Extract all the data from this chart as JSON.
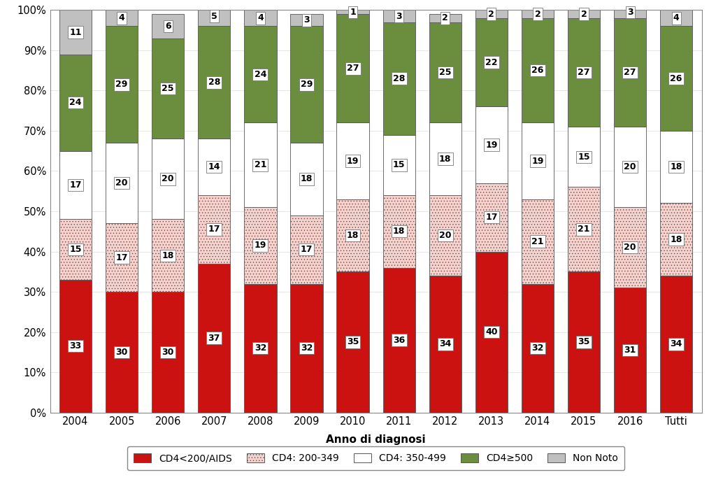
{
  "categories": [
    "2004",
    "2005",
    "2006",
    "2007",
    "2008",
    "2009",
    "2010",
    "2011",
    "2012",
    "2013",
    "2014",
    "2015",
    "2016",
    "Tutti"
  ],
  "cd4_aids": [
    33,
    30,
    30,
    37,
    32,
    32,
    35,
    36,
    34,
    40,
    32,
    35,
    31,
    34
  ],
  "cd4_200_349": [
    15,
    17,
    18,
    17,
    19,
    17,
    18,
    18,
    20,
    17,
    21,
    21,
    20,
    18
  ],
  "cd4_350_499": [
    17,
    20,
    20,
    14,
    21,
    18,
    19,
    15,
    18,
    19,
    19,
    15,
    20,
    18
  ],
  "cd4_500": [
    24,
    29,
    25,
    28,
    24,
    29,
    27,
    28,
    25,
    22,
    26,
    27,
    27,
    26
  ],
  "non_noto": [
    11,
    4,
    6,
    5,
    4,
    3,
    1,
    3,
    2,
    2,
    2,
    2,
    3,
    4
  ],
  "color_cd4_aids": "#cc1111",
  "color_cd4_200_349": "#f8d0cc",
  "color_cd4_350_499": "#ffffff",
  "color_cd4_500": "#6b8e3e",
  "color_non_noto": "#c0c0c0",
  "hatch_cd4_200_349": "....",
  "xlabel": "Anno di diagnosi",
  "legend_labels": [
    "CD4<200/AIDS",
    "CD4: 200-349",
    "CD4: 350-499",
    "CD4≥500",
    "Non Noto"
  ],
  "background_color": "#ffffff",
  "bar_edge_color": "#555555",
  "bar_edge_width": 0.6,
  "label_fontsize": 9,
  "bar_width": 0.7
}
